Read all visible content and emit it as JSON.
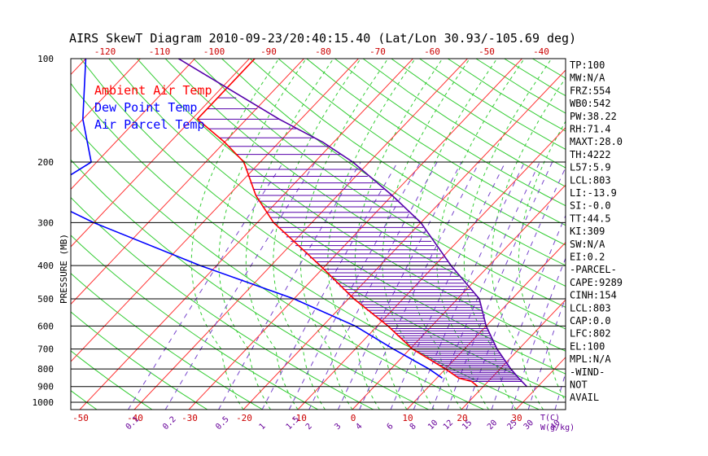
{
  "chart_data": {
    "type": "line",
    "title": "AIRS SkewT Diagram 2010-09-23/20:40:15.40 (Lat/Lon 30.93/-105.69 deg)",
    "ylabel": "PRESSURE (MB)",
    "xlabel": "T(C)",
    "mixing_label": "W(g/kg)",
    "y_scale": "log",
    "pressure_ticks": [
      100,
      200,
      300,
      400,
      500,
      600,
      700,
      800,
      900,
      1000
    ],
    "pressure_range": [
      100,
      1050
    ],
    "bottom_temp_ticks": [
      -50,
      -40,
      -30,
      -20,
      -10,
      0,
      10,
      20,
      30
    ],
    "top_temp_ticks": [
      -120,
      -110,
      -100,
      -90,
      -80,
      -70,
      -60,
      -50,
      -40
    ],
    "mixing_ratio_ticks": [
      "0.1",
      "0.2",
      "0.5",
      "1",
      "1.5",
      "2",
      "3",
      "4",
      "6",
      "8",
      "10",
      "12",
      "15",
      "20",
      "25",
      "30",
      "40"
    ],
    "legend": [
      {
        "label": "Ambient Air Temp",
        "color": "#ff0000"
      },
      {
        "label": "Dew Point Temp",
        "color": "#0000ff"
      },
      {
        "label": "Air Parcel Temp",
        "color": "#0000ff"
      }
    ],
    "series": [
      {
        "name": "Ambient Air Temp",
        "color": "#ff0000",
        "points": [
          [
            100,
            -79
          ],
          [
            130,
            -79
          ],
          [
            150,
            -79
          ],
          [
            175,
            -70
          ],
          [
            200,
            -63
          ],
          [
            250,
            -55
          ],
          [
            300,
            -47
          ],
          [
            400,
            -31
          ],
          [
            500,
            -19
          ],
          [
            600,
            -8
          ],
          [
            700,
            0.5
          ],
          [
            800,
            10
          ],
          [
            850,
            14
          ],
          [
            870,
            17
          ],
          [
            900,
            19
          ]
        ]
      },
      {
        "name": "Dew Point Temp",
        "color": "#0000ff",
        "points": [
          [
            100,
            -110
          ],
          [
            150,
            -100
          ],
          [
            200,
            -91
          ],
          [
            250,
            -95
          ],
          [
            300,
            -80
          ],
          [
            400,
            -53
          ],
          [
            500,
            -30
          ],
          [
            600,
            -14
          ],
          [
            700,
            -3
          ],
          [
            800,
            7
          ],
          [
            850,
            11
          ]
        ]
      },
      {
        "name": "Air Parcel Temp",
        "color": "#5500aa",
        "points": [
          [
            100,
            -93
          ],
          [
            150,
            -64
          ],
          [
            175,
            -52
          ],
          [
            200,
            -43
          ],
          [
            250,
            -30
          ],
          [
            300,
            -20
          ],
          [
            400,
            -7
          ],
          [
            500,
            4
          ],
          [
            600,
            10
          ],
          [
            700,
            16
          ],
          [
            800,
            22
          ],
          [
            850,
            25
          ],
          [
            900,
            28
          ]
        ]
      }
    ],
    "stats": [
      "TP:100",
      "MW:N/A",
      "FRZ:554",
      "WB0:542",
      "PW:38.22",
      "RH:71.4",
      "MAXT:28.0",
      "TH:4222",
      "L57:5.9",
      "LCL:803",
      "LI:-13.9",
      "SI:-0.0",
      "TT:44.5",
      "KI:309",
      "SW:N/A",
      "EI:0.2",
      "-PARCEL-",
      "CAPE:9289",
      "CINH:154",
      "LCL:803",
      "CAP:0.0",
      "LFC:802",
      "EL:100",
      "MPL:N/A",
      "-WIND-",
      "NOT",
      "AVAIL"
    ],
    "grid": true
  }
}
